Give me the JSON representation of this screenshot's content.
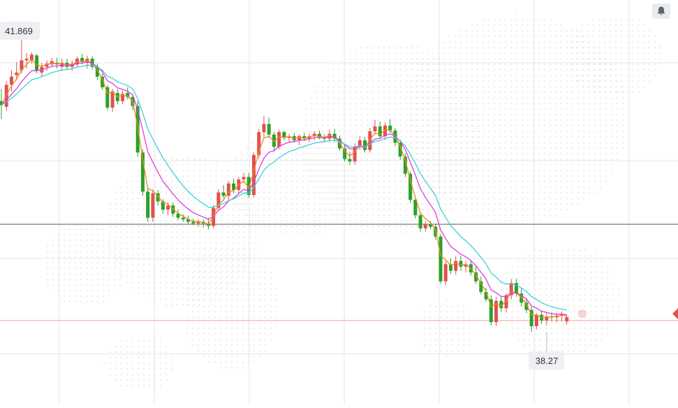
{
  "colors": {
    "up": "#e0524f",
    "down": "#2aa12a",
    "ma_fast": "#f08a1a",
    "ma_mid": "#e23be0",
    "ma_slow": "#40cfd8",
    "current_line": "#f3a6a6",
    "ref_line": "#555555",
    "background": "#ffffff"
  },
  "labels": {
    "high_label": "41.869",
    "low_label": "38.27"
  },
  "alert_button": {
    "icon": "bell-icon"
  },
  "chart_data": {
    "type": "candlestick",
    "title": "",
    "ylim": [
      37.38,
      42.34
    ],
    "grid": true,
    "y_gridlines": [
      41.57,
      40.37,
      39.17,
      38.0
    ],
    "reference_lines": {
      "horizontal_gray": 39.59,
      "current_price": 38.41
    },
    "high": 41.869,
    "low": 38.27,
    "candles": [
      [
        41.1,
        41.25,
        40.88,
        41.05
      ],
      [
        41.03,
        41.35,
        40.98,
        41.3
      ],
      [
        41.3,
        41.48,
        41.22,
        41.4
      ],
      [
        41.42,
        41.58,
        41.36,
        41.45
      ],
      [
        41.48,
        41.869,
        41.44,
        41.6
      ],
      [
        41.6,
        41.69,
        41.5,
        41.62
      ],
      [
        41.6,
        41.7,
        41.56,
        41.67
      ],
      [
        41.66,
        41.68,
        41.44,
        41.47
      ],
      [
        41.45,
        41.57,
        41.4,
        41.52
      ],
      [
        41.52,
        41.6,
        41.47,
        41.56
      ],
      [
        41.55,
        41.63,
        41.52,
        41.59
      ],
      [
        41.57,
        41.63,
        41.5,
        41.55
      ],
      [
        41.52,
        41.62,
        41.47,
        41.57
      ],
      [
        41.57,
        41.62,
        41.49,
        41.52
      ],
      [
        41.52,
        41.6,
        41.47,
        41.56
      ],
      [
        41.55,
        41.65,
        41.52,
        41.62
      ],
      [
        41.63,
        41.68,
        41.55,
        41.58
      ],
      [
        41.57,
        41.66,
        41.5,
        41.62
      ],
      [
        41.62,
        41.65,
        41.49,
        41.52
      ],
      [
        41.52,
        41.56,
        41.36,
        41.4
      ],
      [
        41.4,
        41.44,
        41.24,
        41.27
      ],
      [
        41.27,
        41.3,
        40.99,
        41.02
      ],
      [
        41.02,
        41.25,
        40.97,
        41.22
      ],
      [
        41.2,
        41.25,
        41.06,
        41.1
      ],
      [
        41.1,
        41.23,
        41.06,
        41.19
      ],
      [
        41.2,
        41.27,
        41.12,
        41.15
      ],
      [
        41.15,
        41.19,
        40.99,
        41.04
      ],
      [
        41.04,
        41.1,
        40.42,
        40.47
      ],
      [
        40.47,
        40.51,
        39.94,
        39.99
      ],
      [
        39.99,
        40.05,
        39.62,
        39.67
      ],
      [
        39.67,
        40.02,
        39.62,
        39.97
      ],
      [
        39.97,
        40.01,
        39.82,
        39.87
      ],
      [
        39.87,
        39.9,
        39.72,
        39.77
      ],
      [
        39.77,
        39.86,
        39.7,
        39.82
      ],
      [
        39.82,
        39.86,
        39.68,
        39.72
      ],
      [
        39.72,
        39.77,
        39.64,
        39.67
      ],
      [
        39.67,
        39.71,
        39.62,
        39.65
      ],
      [
        39.65,
        39.69,
        39.59,
        39.62
      ],
      [
        39.62,
        39.66,
        39.58,
        39.6
      ],
      [
        39.6,
        39.65,
        39.56,
        39.62
      ],
      [
        39.62,
        39.65,
        39.55,
        39.6
      ],
      [
        39.6,
        39.67,
        39.53,
        39.57
      ],
      [
        39.57,
        39.83,
        39.54,
        39.79
      ],
      [
        39.79,
        40.02,
        39.76,
        39.98
      ],
      [
        39.98,
        40.07,
        39.91,
        39.94
      ],
      [
        39.94,
        40.12,
        39.89,
        40.09
      ],
      [
        40.09,
        40.15,
        39.97,
        40.01
      ],
      [
        40.01,
        40.17,
        39.97,
        40.14
      ],
      [
        40.14,
        40.22,
        40.1,
        40.17
      ],
      [
        40.17,
        40.22,
        39.92,
        39.95
      ],
      [
        39.95,
        40.47,
        39.92,
        40.44
      ],
      [
        40.44,
        40.76,
        40.4,
        40.72
      ],
      [
        40.72,
        40.92,
        40.66,
        40.82
      ],
      [
        40.82,
        40.9,
        40.65,
        40.69
      ],
      [
        40.69,
        40.72,
        40.5,
        40.54
      ],
      [
        40.54,
        40.75,
        40.51,
        40.72
      ],
      [
        40.72,
        40.74,
        40.62,
        40.65
      ],
      [
        40.65,
        40.7,
        40.59,
        40.67
      ],
      [
        40.67,
        40.71,
        40.59,
        40.62
      ],
      [
        40.62,
        40.69,
        40.56,
        40.67
      ],
      [
        40.67,
        40.71,
        40.61,
        40.64
      ],
      [
        40.64,
        40.7,
        40.6,
        40.67
      ],
      [
        40.67,
        40.73,
        40.62,
        40.7
      ],
      [
        40.7,
        40.74,
        40.63,
        40.66
      ],
      [
        40.66,
        40.69,
        40.6,
        40.64
      ],
      [
        40.64,
        40.75,
        40.6,
        40.7
      ],
      [
        40.7,
        40.76,
        40.6,
        40.64
      ],
      [
        40.64,
        40.68,
        40.49,
        40.52
      ],
      [
        40.52,
        40.56,
        40.36,
        40.39
      ],
      [
        40.39,
        40.48,
        40.32,
        40.36
      ],
      [
        40.36,
        40.58,
        40.32,
        40.54
      ],
      [
        40.54,
        40.67,
        40.5,
        40.62
      ],
      [
        40.62,
        40.66,
        40.47,
        40.5
      ],
      [
        40.5,
        40.77,
        40.47,
        40.73
      ],
      [
        40.73,
        40.87,
        40.69,
        40.79
      ],
      [
        40.79,
        40.85,
        40.64,
        40.67
      ],
      [
        40.67,
        40.84,
        40.62,
        40.8
      ],
      [
        40.8,
        40.88,
        40.71,
        40.74
      ],
      [
        40.74,
        40.77,
        40.55,
        40.59
      ],
      [
        40.59,
        40.63,
        40.38,
        40.42
      ],
      [
        40.42,
        40.46,
        40.17,
        40.21
      ],
      [
        40.21,
        40.24,
        39.85,
        39.89
      ],
      [
        39.89,
        39.93,
        39.66,
        39.7
      ],
      [
        39.7,
        39.74,
        39.5,
        39.54
      ],
      [
        39.54,
        39.63,
        39.5,
        39.59
      ],
      [
        39.59,
        39.63,
        39.53,
        39.56
      ],
      [
        39.56,
        39.6,
        39.4,
        39.44
      ],
      [
        39.44,
        39.47,
        38.86,
        38.89
      ],
      [
        38.89,
        39.14,
        38.84,
        39.1
      ],
      [
        39.1,
        39.17,
        38.98,
        39.02
      ],
      [
        39.02,
        39.2,
        38.97,
        39.14
      ],
      [
        39.14,
        39.2,
        39.02,
        39.07
      ],
      [
        39.07,
        39.14,
        39.0,
        39.1
      ],
      [
        39.1,
        39.15,
        38.96,
        39.0
      ],
      [
        39.0,
        39.07,
        38.86,
        38.89
      ],
      [
        38.89,
        38.95,
        38.73,
        38.76
      ],
      [
        38.76,
        38.81,
        38.64,
        38.67
      ],
      [
        38.67,
        38.72,
        38.35,
        38.39
      ],
      [
        38.39,
        38.7,
        38.34,
        38.65
      ],
      [
        38.65,
        38.7,
        38.52,
        38.56
      ],
      [
        38.56,
        38.74,
        38.51,
        38.72
      ],
      [
        38.72,
        38.92,
        38.67,
        38.87
      ],
      [
        38.87,
        38.92,
        38.7,
        38.74
      ],
      [
        38.74,
        38.81,
        38.58,
        38.63
      ],
      [
        38.63,
        38.69,
        38.5,
        38.54
      ],
      [
        38.54,
        38.58,
        38.27,
        38.34
      ],
      [
        38.34,
        38.5,
        38.3,
        38.48
      ],
      [
        38.48,
        38.52,
        38.37,
        38.41
      ],
      [
        38.41,
        38.5,
        38.35,
        38.46
      ],
      [
        38.46,
        38.51,
        38.4,
        38.45
      ],
      [
        38.45,
        38.5,
        38.39,
        38.47
      ],
      [
        38.47,
        38.52,
        38.4,
        38.49
      ],
      [
        38.4,
        38.48,
        38.36,
        38.45
      ]
    ]
  }
}
